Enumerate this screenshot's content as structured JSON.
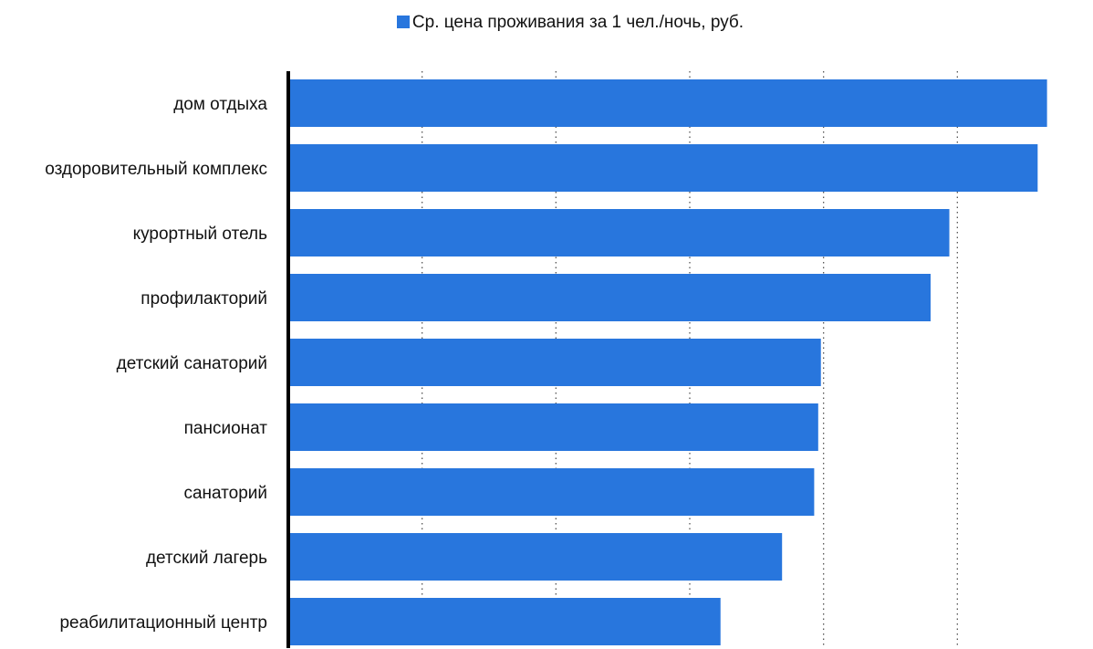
{
  "chart_data": {
    "type": "bar",
    "orientation": "horizontal",
    "title": "",
    "xlabel": "",
    "ylabel": "",
    "categories": [
      "дом отдыха",
      "оздоровительный комплекс",
      "курортный отель",
      "профилакторий",
      "детский санаторий",
      "пансионат",
      "санаторий",
      "детский лагерь",
      "реабилитационный центр"
    ],
    "series": [
      {
        "name": "Ср. цена проживания за 1 чел./ночь, руб.",
        "color": "#2876dd",
        "values": [
          5670,
          5600,
          4940,
          4800,
          3980,
          3960,
          3930,
          3690,
          3230
        ]
      }
    ],
    "xlim": [
      0,
      6000
    ],
    "x_gridlines": [
      1000,
      2000,
      3000,
      4000,
      5000
    ],
    "grid": "vertical-dotted",
    "tick_labels_shown": false,
    "legend_position": "top-center"
  }
}
